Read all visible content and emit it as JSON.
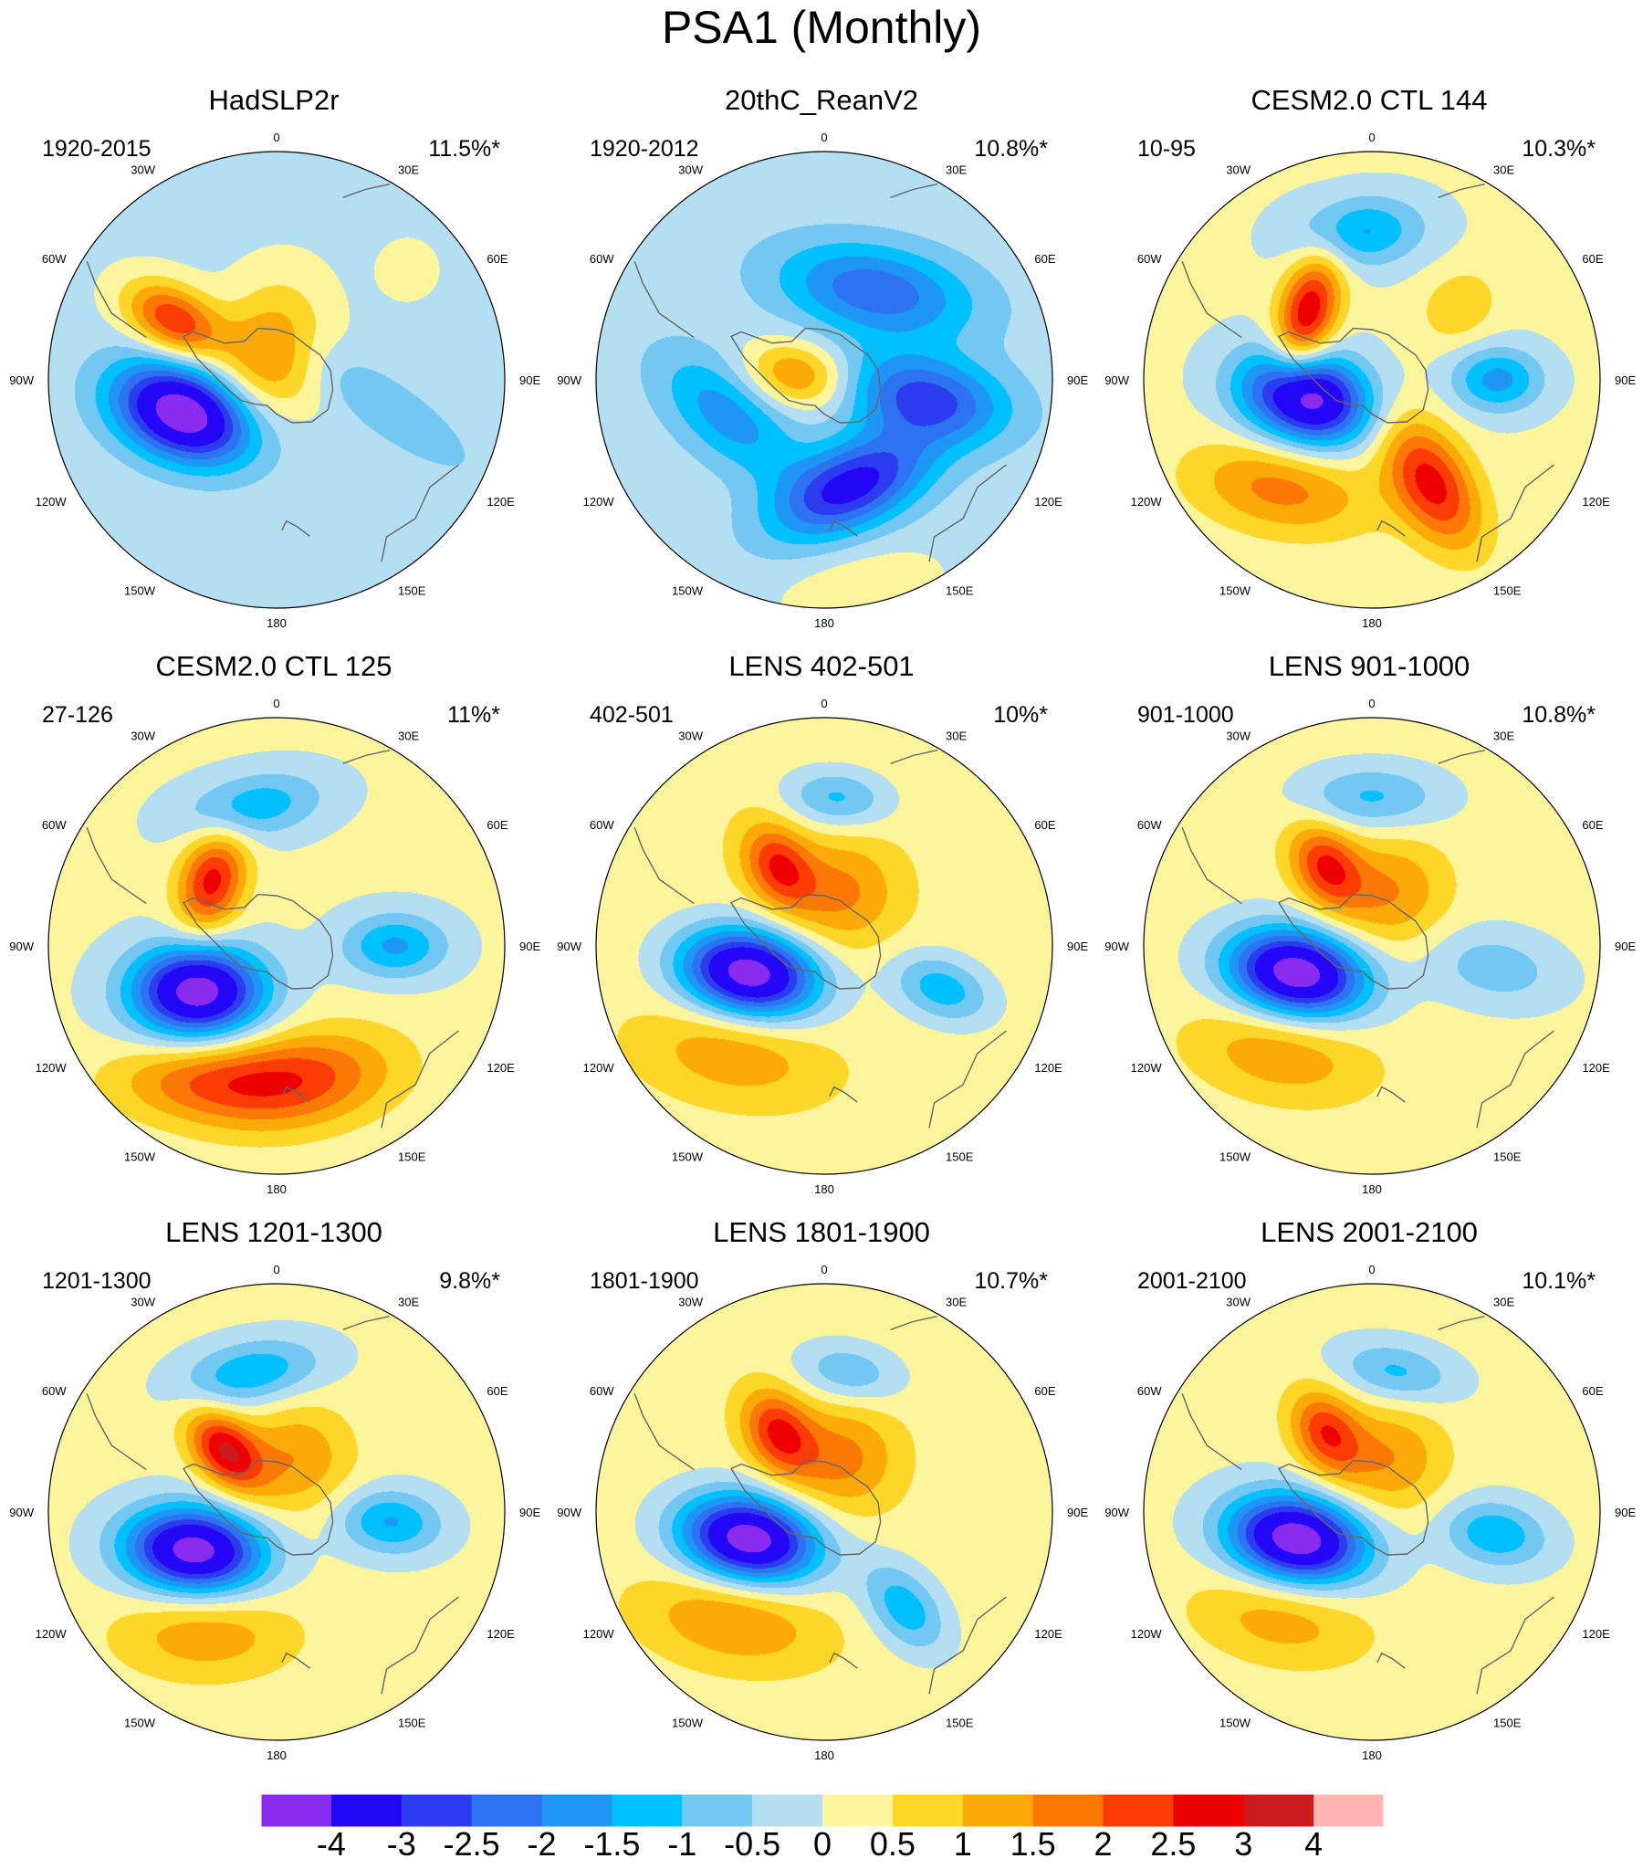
{
  "title": "PSA1 (Monthly)",
  "longitude_labels": [
    "0",
    "30E",
    "60E",
    "90E",
    "120E",
    "150E",
    "180",
    "150W",
    "120W",
    "90W",
    "60W",
    "30W"
  ],
  "panels": [
    {
      "title": "HadSLP2r",
      "period": "1920-2015",
      "variance": "11.5%*",
      "features": [
        {
          "lon": -110,
          "r": 0.43,
          "amp": -4.6,
          "sa": 0.14,
          "sb": 0.22,
          "rot": 40
        },
        {
          "lon": -60,
          "r": 0.52,
          "amp": 2.6,
          "sa": 0.1,
          "sb": 0.16,
          "rot": 0
        },
        {
          "lon": -15,
          "r": 0.12,
          "amp": 1.7,
          "sa": 0.16,
          "sb": 0.22,
          "rot": 30
        },
        {
          "lon": 105,
          "r": 0.52,
          "amp": -0.8,
          "sa": 0.09,
          "sb": 0.3,
          "rot": 20
        },
        {
          "lon": 50,
          "r": 0.75,
          "amp": 0.4,
          "sa": 0.1,
          "sb": 0.1,
          "rot": 0
        }
      ],
      "bias": -0.15
    },
    {
      "title": "20thC_ReanV2",
      "period": "1920-2012",
      "variance": "10.8%*",
      "features": [
        {
          "lon": 30,
          "r": 0.45,
          "amp": -2.2,
          "sa": 0.14,
          "sb": 0.3,
          "rot": 70
        },
        {
          "lon": 100,
          "r": 0.45,
          "amp": -2.5,
          "sa": 0.13,
          "sb": 0.25,
          "rot": 0
        },
        {
          "lon": 165,
          "r": 0.48,
          "amp": -3.1,
          "sa": 0.13,
          "sb": 0.26,
          "rot": 80
        },
        {
          "lon": -110,
          "r": 0.45,
          "amp": -1.6,
          "sa": 0.13,
          "sb": 0.25,
          "rot": 60
        },
        {
          "lon": -80,
          "r": 0.12,
          "amp": 1.8,
          "sa": 0.1,
          "sb": 0.16,
          "rot": 0
        },
        {
          "lon": 170,
          "r": 0.92,
          "amp": 0.6,
          "sa": 0.12,
          "sb": 0.25,
          "rot": 90
        }
      ],
      "bias": -0.2
    },
    {
      "title": "CESM2.0 CTL 144",
      "period": "10-95",
      "variance": "10.3%*",
      "features": [
        {
          "lon": -105,
          "r": 0.3,
          "amp": -4.6,
          "sa": 0.14,
          "sb": 0.2,
          "rot": 30
        },
        {
          "lon": -45,
          "r": 0.4,
          "amp": 2.9,
          "sa": 0.09,
          "sb": 0.2,
          "rot": 60
        },
        {
          "lon": 150,
          "r": 0.52,
          "amp": 2.6,
          "sa": 0.12,
          "sb": 0.22,
          "rot": 0
        },
        {
          "lon": -140,
          "r": 0.62,
          "amp": 1.6,
          "sa": 0.14,
          "sb": 0.28,
          "rot": 60
        },
        {
          "lon": 90,
          "r": 0.55,
          "amp": -1.8,
          "sa": 0.1,
          "sb": 0.14,
          "rot": 0
        },
        {
          "lon": -5,
          "r": 0.65,
          "amp": -1.7,
          "sa": 0.11,
          "sb": 0.2,
          "rot": 90
        },
        {
          "lon": 50,
          "r": 0.5,
          "amp": 0.9,
          "sa": 0.1,
          "sb": 0.12,
          "rot": 0
        }
      ],
      "bias": 0.1
    },
    {
      "title": "CESM2.0 CTL 125",
      "period": "27-126",
      "variance": "11%*",
      "features": [
        {
          "lon": -120,
          "r": 0.4,
          "amp": -4.6,
          "sa": 0.14,
          "sb": 0.2,
          "rot": 30
        },
        {
          "lon": -45,
          "r": 0.4,
          "amp": 2.6,
          "sa": 0.1,
          "sb": 0.16,
          "rot": 60
        },
        {
          "lon": 170,
          "r": 0.6,
          "amp": 2.0,
          "sa": 0.15,
          "sb": 0.3,
          "rot": 90
        },
        {
          "lon": -150,
          "r": 0.68,
          "amp": 1.5,
          "sa": 0.12,
          "sb": 0.28,
          "rot": 60
        },
        {
          "lon": 90,
          "r": 0.52,
          "amp": -1.7,
          "sa": 0.1,
          "sb": 0.16,
          "rot": 0
        },
        {
          "lon": -10,
          "r": 0.62,
          "amp": -1.5,
          "sa": 0.1,
          "sb": 0.22,
          "rot": 90
        }
      ],
      "bias": 0.1
    },
    {
      "title": "LENS 402-501",
      "period": "402-501",
      "variance": "10%*",
      "features": [
        {
          "lon": -110,
          "r": 0.35,
          "amp": -4.8,
          "sa": 0.13,
          "sb": 0.21,
          "rot": 30
        },
        {
          "lon": -30,
          "r": 0.4,
          "amp": 2.2,
          "sa": 0.1,
          "sb": 0.14,
          "rot": 0
        },
        {
          "lon": 20,
          "r": 0.25,
          "amp": 1.3,
          "sa": 0.17,
          "sb": 0.17,
          "rot": 0
        },
        {
          "lon": 110,
          "r": 0.55,
          "amp": -1.6,
          "sa": 0.1,
          "sb": 0.16,
          "rot": 0
        },
        {
          "lon": 5,
          "r": 0.65,
          "amp": -1.4,
          "sa": 0.09,
          "sb": 0.16,
          "rot": 90
        },
        {
          "lon": -140,
          "r": 0.62,
          "amp": 1.1,
          "sa": 0.14,
          "sb": 0.28,
          "rot": 60
        }
      ],
      "bias": 0.3
    },
    {
      "title": "LENS 901-1000",
      "period": "901-1000",
      "variance": "10.8%*",
      "features": [
        {
          "lon": -110,
          "r": 0.35,
          "amp": -4.8,
          "sa": 0.13,
          "sb": 0.21,
          "rot": 30
        },
        {
          "lon": -30,
          "r": 0.4,
          "amp": 2.3,
          "sa": 0.1,
          "sb": 0.14,
          "rot": 0
        },
        {
          "lon": 20,
          "r": 0.25,
          "amp": 1.3,
          "sa": 0.17,
          "sb": 0.17,
          "rot": 0
        },
        {
          "lon": 100,
          "r": 0.55,
          "amp": -1.0,
          "sa": 0.12,
          "sb": 0.22,
          "rot": 0
        },
        {
          "lon": 0,
          "r": 0.65,
          "amp": -1.3,
          "sa": 0.1,
          "sb": 0.22,
          "rot": 90
        },
        {
          "lon": -140,
          "r": 0.62,
          "amp": 1.2,
          "sa": 0.14,
          "sb": 0.28,
          "rot": 60
        }
      ],
      "bias": 0.2
    },
    {
      "title": "LENS 1201-1300",
      "period": "1201-1300",
      "variance": "9.8%*",
      "features": [
        {
          "lon": -115,
          "r": 0.4,
          "amp": -4.6,
          "sa": 0.13,
          "sb": 0.21,
          "rot": 30
        },
        {
          "lon": -40,
          "r": 0.35,
          "amp": 2.8,
          "sa": 0.09,
          "sb": 0.14,
          "rot": 0
        },
        {
          "lon": 20,
          "r": 0.25,
          "amp": 1.3,
          "sa": 0.17,
          "sb": 0.17,
          "rot": 0
        },
        {
          "lon": 95,
          "r": 0.5,
          "amp": -1.7,
          "sa": 0.1,
          "sb": 0.16,
          "rot": 0
        },
        {
          "lon": -10,
          "r": 0.62,
          "amp": -1.6,
          "sa": 0.1,
          "sb": 0.22,
          "rot": 90
        },
        {
          "lon": -150,
          "r": 0.62,
          "amp": 1.2,
          "sa": 0.14,
          "sb": 0.28,
          "rot": 60
        }
      ],
      "bias": 0.15
    },
    {
      "title": "LENS 1801-1900",
      "period": "1801-1900",
      "variance": "10.7%*",
      "features": [
        {
          "lon": -110,
          "r": 0.35,
          "amp": -4.8,
          "sa": 0.13,
          "sb": 0.21,
          "rot": 30
        },
        {
          "lon": -30,
          "r": 0.4,
          "amp": 2.3,
          "sa": 0.1,
          "sb": 0.14,
          "rot": 0
        },
        {
          "lon": 20,
          "r": 0.25,
          "amp": 1.4,
          "sa": 0.17,
          "sb": 0.17,
          "rot": 0
        },
        {
          "lon": 140,
          "r": 0.55,
          "amp": -1.6,
          "sa": 0.1,
          "sb": 0.16,
          "rot": 0
        },
        {
          "lon": 10,
          "r": 0.62,
          "amp": -1.2,
          "sa": 0.09,
          "sb": 0.16,
          "rot": 90
        },
        {
          "lon": -140,
          "r": 0.62,
          "amp": 1.3,
          "sa": 0.14,
          "sb": 0.28,
          "rot": 60
        }
      ],
      "bias": 0.25
    },
    {
      "title": "LENS 2001-2100",
      "period": "2001-2100",
      "variance": "10.1%*",
      "features": [
        {
          "lon": -110,
          "r": 0.35,
          "amp": -4.8,
          "sa": 0.13,
          "sb": 0.21,
          "rot": 30
        },
        {
          "lon": -30,
          "r": 0.4,
          "amp": 2.2,
          "sa": 0.1,
          "sb": 0.14,
          "rot": 0
        },
        {
          "lon": 20,
          "r": 0.25,
          "amp": 1.3,
          "sa": 0.17,
          "sb": 0.17,
          "rot": 0
        },
        {
          "lon": 100,
          "r": 0.55,
          "amp": -1.6,
          "sa": 0.1,
          "sb": 0.16,
          "rot": 0
        },
        {
          "lon": 10,
          "r": 0.62,
          "amp": -1.3,
          "sa": 0.09,
          "sb": 0.18,
          "rot": 90
        },
        {
          "lon": -140,
          "r": 0.62,
          "amp": 1.1,
          "sa": 0.14,
          "sb": 0.28,
          "rot": 60
        }
      ],
      "bias": 0.15
    }
  ],
  "colorbar": {
    "labels": [
      "-4",
      "-3",
      "-2.5",
      "-2",
      "-1.5",
      "-1",
      "-0.5",
      "0",
      "0.5",
      "1",
      "1.5",
      "2",
      "2.5",
      "3",
      "4"
    ],
    "levels": [
      -4,
      -3,
      -2.5,
      -2,
      -1.5,
      -1,
      -0.5,
      0,
      0.5,
      1,
      1.5,
      2,
      2.5,
      3,
      4
    ],
    "colors": [
      "#8a2bf0",
      "#2206f5",
      "#2a3cee",
      "#2d72f0",
      "#1e96f5",
      "#00c0ff",
      "#73c8f2",
      "#b4def2",
      "#fdf59c",
      "#fcd628",
      "#fbaa0a",
      "#fb7806",
      "#fb3c05",
      "#ee0000",
      "#cc1b1b",
      "#ffb4b4"
    ]
  }
}
